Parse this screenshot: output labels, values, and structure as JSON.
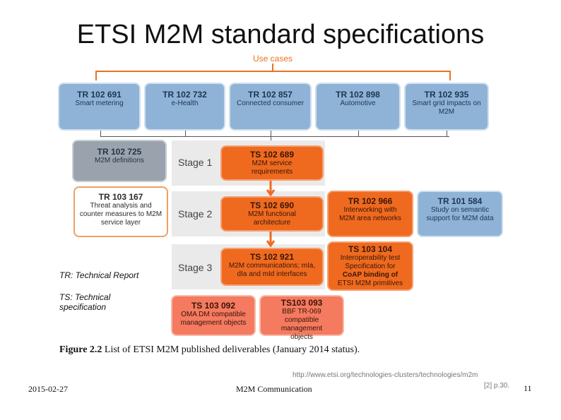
{
  "slide": {
    "title": "ETSI M2M standard specifications",
    "footer_date": "2015-02-27",
    "footer_center": "M2M Communication",
    "page_number": "11",
    "source_url": "http://www.etsi.org/technologies-clusters/technologies/m2m",
    "source_ref": "[2] p.30."
  },
  "diagram": {
    "use_cases_label": "Use cases",
    "use_cases": [
      {
        "id": "TR 102 691",
        "desc": "Smart metering"
      },
      {
        "id": "TR 102 732",
        "desc": "e-Health"
      },
      {
        "id": "TR 102 857",
        "desc": "Connected consumer"
      },
      {
        "id": "TR 102 898",
        "desc": "Automotive"
      },
      {
        "id": "TR 102 935",
        "desc": "Smart grid impacts on M2M"
      }
    ],
    "stages": [
      "Stage 1",
      "Stage 2",
      "Stage 3"
    ],
    "definitions": {
      "id": "TR 102 725",
      "desc": "M2M definitions"
    },
    "threat": {
      "id": "TR 103 167",
      "desc": "Threat analysis and counter measures to M2M service layer"
    },
    "stage1_spec": {
      "id": "TS 102 689",
      "desc": "M2M service requirements"
    },
    "stage2_spec": {
      "id": "TS 102 690",
      "desc": "M2M functional architecture"
    },
    "interworking": {
      "id": "TR 102 966",
      "desc": "Interworking with M2M area networks"
    },
    "semantic": {
      "id": "TR 101 584",
      "desc": "Study on semantic support for M2M data"
    },
    "stage3_spec": {
      "id": "TS 102 921",
      "desc": "M2M communications; mIa, dIa and mId interfaces"
    },
    "coap": {
      "id": "TS 103 104",
      "desc_pre": "Interoperability test Specification for",
      "desc_bold": "CoAP binding of",
      "desc_post": "ETSI M2M primitives"
    },
    "oma": {
      "id": "TS 103 092",
      "desc": "OMA DM compatible management objects"
    },
    "bbf": {
      "id": "TS103 093",
      "desc": "BBF TR-069 compatible management objects"
    },
    "legend_tr": "TR: Technical Report",
    "legend_ts": "TS: Technical specification",
    "caption_label": "Figure 2.2",
    "caption_text": "List of ETSI M2M published deliverables (January 2014 status)."
  }
}
